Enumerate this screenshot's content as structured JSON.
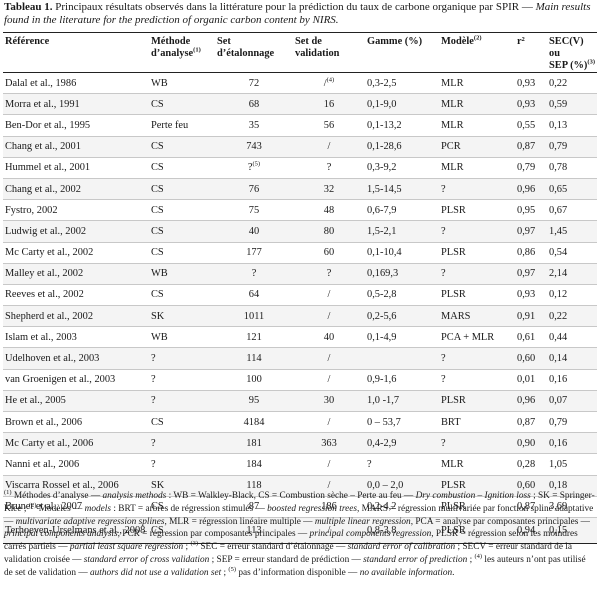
{
  "caption": {
    "lead": "Tableau 1.",
    "fr": " Principaux résultats observés dans la littérature pour la prédiction du taux de carbone organique par SPIR — ",
    "en": "Main results found in the literature for the prediction of organic carbon content by NIRS."
  },
  "headers": {
    "ref": "Référence",
    "method_a": "Méthode",
    "method_b": "d’analyse",
    "method_sup": "(1)",
    "cal_a": "Set",
    "cal_b": "d’étalonnage",
    "val_a": "Set de",
    "val_b": "validation",
    "range": "Gamme (%)",
    "model": "Modèle",
    "model_sup": "(2)",
    "r2": "r²",
    "sec_a": "SEC(V) ou",
    "sec_b": "SEP (%)",
    "sec_sup": "(3)"
  },
  "rows": [
    {
      "ref": "Dalal et al., 1986",
      "method": "WB",
      "cal": "72",
      "val": "/",
      "val_sup": "(4)",
      "range": "0,3-2,5",
      "model": "MLR",
      "r2": "0,93",
      "sec": "0,22"
    },
    {
      "ref": "Morra et al., 1991",
      "method": "CS",
      "cal": "68",
      "val": "16",
      "range": "0,1-9,0",
      "model": "MLR",
      "r2": "0,93",
      "sec": "0,59"
    },
    {
      "ref": "Ben-Dor et al., 1995",
      "method": "Perte feu",
      "cal": "35",
      "val": "56",
      "range": "0,1-13,2",
      "model": "MLR",
      "r2": "0,55",
      "sec": "0,13"
    },
    {
      "ref": "Chang et al., 2001",
      "method": "CS",
      "cal": "743",
      "val": "/",
      "range": "0,1-28,6",
      "model": "PCR",
      "r2": "0,87",
      "sec": "0,79"
    },
    {
      "ref": "Hummel et al., 2001",
      "method": "CS",
      "cal": "?",
      "cal_sup": "(5)",
      "val": "?",
      "range": "0,3-9,2",
      "model": "MLR",
      "r2": "0,79",
      "sec": "0,78"
    },
    {
      "ref": "Chang et al., 2002",
      "method": "CS",
      "cal": "76",
      "val": "32",
      "range": "1,5-14,5",
      "model": "?",
      "r2": "0,96",
      "sec": "0,65"
    },
    {
      "ref": "Fystro, 2002",
      "method": "CS",
      "cal": "75",
      "val": "48",
      "range": "0,6-7,9",
      "model": "PLSR",
      "r2": "0,95",
      "sec": "0,67"
    },
    {
      "ref": "Ludwig et al., 2002",
      "method": "CS",
      "cal": "40",
      "val": "80",
      "range": "1,5-2,1",
      "model": "?",
      "r2": "0,97",
      "sec": "1,45"
    },
    {
      "ref": "Mc Carty et al., 2002",
      "method": "CS",
      "cal": "177",
      "val": "60",
      "range": "0,1-10,4",
      "model": "PLSR",
      "r2": "0,86",
      "sec": "0,54"
    },
    {
      "ref": "Malley et al., 2002",
      "method": "WB",
      "cal": "?",
      "val": "?",
      "range": "0,169,3",
      "model": "?",
      "r2": "0,97",
      "sec": "2,14"
    },
    {
      "ref": "Reeves et al., 2002",
      "method": "CS",
      "cal": "64",
      "val": "/",
      "range": "0,5-2,8",
      "model": "PLSR",
      "r2": "0,93",
      "sec": "0,12"
    },
    {
      "ref": "Shepherd et al., 2002",
      "method": "SK",
      "cal": "1011",
      "val": "/",
      "range": "0,2-5,6",
      "model": "MARS",
      "r2": "0,91",
      "sec": "0,22"
    },
    {
      "ref": "Islam et al., 2003",
      "method": "WB",
      "cal": "121",
      "val": "40",
      "range": "0,1-4,9",
      "model": "PCA + MLR",
      "r2": "0,61",
      "sec": "0,44"
    },
    {
      "ref": "Udelhoven et al., 2003",
      "method": "?",
      "cal": "114",
      "val": "/",
      "range": "",
      "model": "?",
      "r2": "0,60",
      "sec": "0,14"
    },
    {
      "ref": "van Groenigen et al., 2003",
      "method": "?",
      "cal": "100",
      "val": "/",
      "range": "0,9-1,6",
      "model": "?",
      "r2": "0,01",
      "sec": "0,16"
    },
    {
      "ref": "He et al., 2005",
      "method": "?",
      "cal": "95",
      "val": "30",
      "range": "1,0 -1,7",
      "model": "PLSR",
      "r2": "0,96",
      "sec": "0,07"
    },
    {
      "ref": "Brown et al., 2006",
      "method": "CS",
      "cal": "4184",
      "val": "/",
      "range": "0 – 53,7",
      "model": "BRT",
      "r2": "0,87",
      "sec": "0,79"
    },
    {
      "ref": "Mc Carty et al., 2006",
      "method": "?",
      "cal": "181",
      "val": "363",
      "range": "0,4-2,9",
      "model": "?",
      "r2": "0,90",
      "sec": "0,16"
    },
    {
      "ref": "Nanni et al., 2006",
      "method": "?",
      "cal": "184",
      "val": "/",
      "range": "?",
      "model": "MLR",
      "r2": "0,28",
      "sec": "1,05"
    },
    {
      "ref": "Viscarra Rossel et al., 2006",
      "method": "SK",
      "cal": "118",
      "val": "/",
      "range": "0,0 – 2,0",
      "model": "PLSR",
      "r2": "0,60",
      "sec": "0,18"
    },
    {
      "ref": "Brunet et al., 2007",
      "method": "CS",
      "cal": "87",
      "val": "186",
      "range": "0,2-4,2",
      "model": "PLSR",
      "r2": "0,87",
      "sec": "3,69"
    },
    {
      "ref": "Terhoeven-Urselmans et al., 2008",
      "method": "CS",
      "cal": "113",
      "val": "/",
      "range": "0,8-3,8",
      "model": "PLSR",
      "r2": "0,94",
      "sec": "0,15",
      "tall": true
    }
  ],
  "notes": [
    {
      "t": "(1)",
      "sup": true
    },
    {
      "t": " Méthodes d’analyse — "
    },
    {
      "t": "analysis methods",
      "i": true
    },
    {
      "t": " : WB = Walkley-Black, CS = Combustion sèche – Perte au feu — "
    },
    {
      "t": "Dry combustion – Ignition loss",
      "i": true
    },
    {
      "t": " ; SK = Springer-Klee ; "
    },
    {
      "t": "(2)",
      "sup": true
    },
    {
      "t": " Modèles — "
    },
    {
      "t": "models",
      "i": true
    },
    {
      "t": " : BRT = arbres de régression stimulés — "
    },
    {
      "t": "boosted regression trees",
      "i": true
    },
    {
      "t": ", MARS = régression multivariée par fonction spline adaptative — "
    },
    {
      "t": "multivariate adaptive regression splines",
      "i": true
    },
    {
      "t": ", MLR = régression linéaire multiple — "
    },
    {
      "t": "multiple linear regression",
      "i": true
    },
    {
      "t": ", PCA = analyse par composantes principales — "
    },
    {
      "t": "principal components analysis",
      "i": true
    },
    {
      "t": ", PCR = régression par composantes principales — "
    },
    {
      "t": "principal components regression",
      "i": true
    },
    {
      "t": ", PLSR = régression selon les moindres carrés partiels — "
    },
    {
      "t": "partial least square regression",
      "i": true
    },
    {
      "t": " ; "
    },
    {
      "t": "(3)",
      "sup": true
    },
    {
      "t": " SEC = erreur standard d’étalonnage — "
    },
    {
      "t": "standard error of calibration",
      "i": true
    },
    {
      "t": " ; SECV = erreur standard de la validation croisée — "
    },
    {
      "t": "standard error of cross validation",
      "i": true
    },
    {
      "t": " ; SEP = erreur standard de prédiction — "
    },
    {
      "t": "standard error of prediction",
      "i": true
    },
    {
      "t": " ; "
    },
    {
      "t": "(4)",
      "sup": true
    },
    {
      "t": " les auteurs n’ont pas utilisé de set de validation — "
    },
    {
      "t": "authors did not use a validation set",
      "i": true
    },
    {
      "t": " ; "
    },
    {
      "t": "(5)",
      "sup": true
    },
    {
      "t": " pas d’information disponible — "
    },
    {
      "t": "no available information",
      "i": true
    },
    {
      "t": "."
    }
  ]
}
